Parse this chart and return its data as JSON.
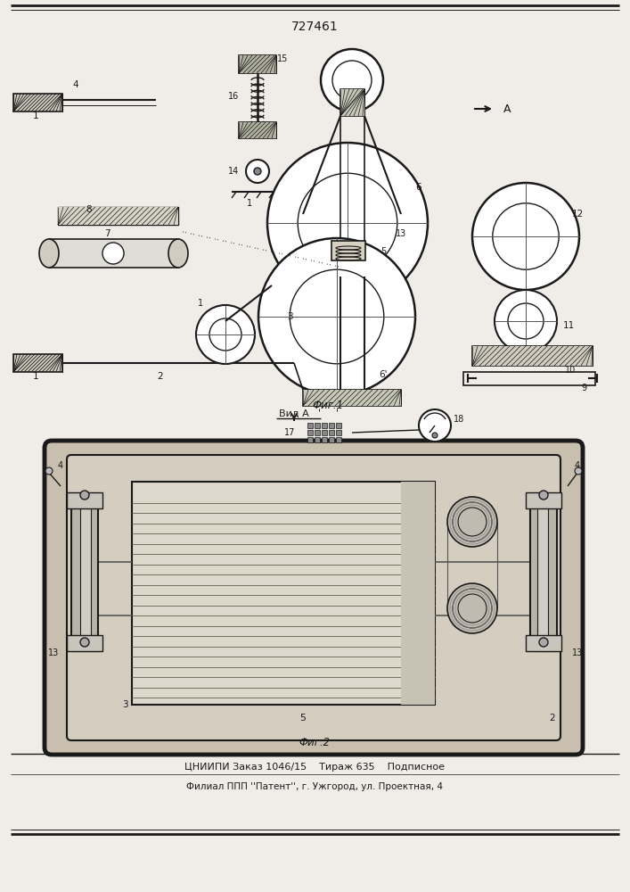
{
  "title": "727461",
  "fig1_label": "Фиг.1",
  "fig2_label": "Фиг.2",
  "vid_label": "Вид А",
  "arrow_label": "А",
  "footer1": "ЦНИИПИ Заказ 1046/15    Тираж 635    Подписное",
  "footer2": "Филиал ППП ''Патент'', г. Ужгород, ул. Проектная, 4",
  "bg_color": "#f0ede8",
  "line_color": "#000000"
}
